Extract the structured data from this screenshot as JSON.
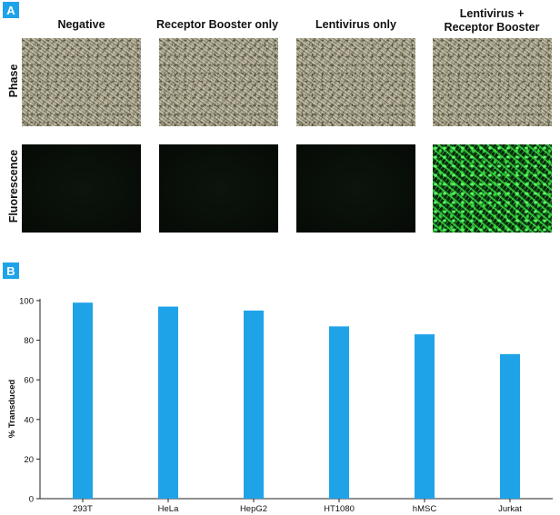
{
  "panel_a": {
    "badge": "A",
    "columns": [
      {
        "label": "Negative"
      },
      {
        "label": "Receptor Booster only"
      },
      {
        "label": "Lentivirus only"
      },
      {
        "label": "Lentivirus +\nReceptor Booster"
      }
    ],
    "rows": [
      {
        "label": "Phase"
      },
      {
        "label": "Fluorescence"
      }
    ]
  },
  "panel_b": {
    "badge": "B"
  },
  "colors": {
    "accent": "#1fa3e8",
    "bar": "#1fa3e8",
    "fluorescence": "#3ee04a"
  },
  "chart_data": {
    "type": "bar",
    "categories": [
      "293T",
      "HeLa",
      "HepG2",
      "HT1080",
      "hMSC",
      "Jurkat"
    ],
    "values": [
      99,
      97,
      95,
      87,
      83,
      73
    ],
    "title": "",
    "xlabel": "",
    "ylabel": "% Transduced",
    "ylim": [
      0,
      100
    ],
    "yticks": [
      0,
      20,
      40,
      60,
      80,
      100
    ],
    "grid": false
  }
}
